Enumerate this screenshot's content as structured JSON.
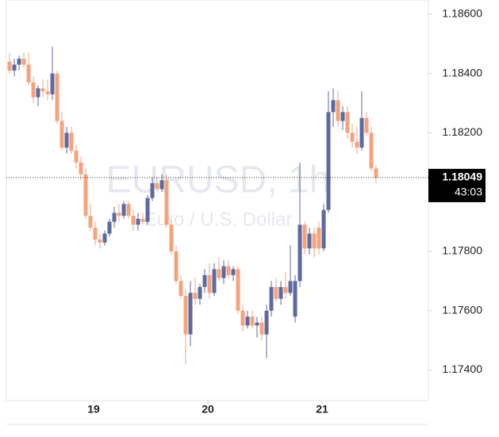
{
  "chart_data": {
    "type": "candlestick",
    "watermark": "EURUSD, 1h",
    "watermark_subtitle": "Euro / U.S. Dollar",
    "x": [
      0,
      1,
      2,
      3,
      4,
      5,
      6,
      7,
      8,
      9,
      10,
      11,
      12,
      13,
      14,
      15,
      16,
      17,
      18,
      19,
      20,
      21,
      22,
      23,
      24,
      25,
      26,
      27,
      28,
      29,
      30,
      31,
      32,
      33,
      34,
      35,
      36,
      37,
      38,
      39,
      40,
      41,
      42,
      43,
      44,
      45,
      46,
      47,
      48,
      49,
      50,
      51,
      52,
      53,
      54,
      55,
      56,
      57,
      58,
      59,
      60,
      61,
      62,
      63,
      64,
      65,
      66,
      67,
      68,
      69,
      70,
      71,
      72,
      73,
      74,
      75,
      76,
      77
    ],
    "open": [
      1.1844,
      1.1841,
      1.1843,
      1.1845,
      1.1843,
      1.1837,
      1.1832,
      1.1835,
      1.1834,
      1.1833,
      1.184,
      1.1824,
      1.1815,
      1.182,
      1.1814,
      1.181,
      1.1806,
      1.1792,
      1.1788,
      1.1784,
      1.1783,
      1.1786,
      1.179,
      1.1793,
      1.1792,
      1.1796,
      1.1792,
      1.1789,
      1.1791,
      1.179,
      1.1798,
      1.1803,
      1.1801,
      1.1804,
      1.1789,
      1.178,
      1.177,
      1.1765,
      1.1752,
      1.1766,
      1.1764,
      1.1768,
      1.1772,
      1.1766,
      1.1774,
      1.1771,
      1.1775,
      1.1772,
      1.1774,
      1.176,
      1.1755,
      1.1758,
      1.1755,
      1.1756,
      1.1752,
      1.176,
      1.1768,
      1.1764,
      1.1768,
      1.1766,
      1.1758,
      1.177,
      1.1789,
      1.1781,
      1.1786,
      1.1788,
      1.1781,
      1.1794,
      1.1827,
      1.1831,
      1.1824,
      1.1827,
      1.182,
      1.1817,
      1.1815,
      1.1825,
      1.182,
      1.1808
    ],
    "high": [
      1.1847,
      1.1845,
      1.1846,
      1.1847,
      1.1847,
      1.1839,
      1.1836,
      1.1838,
      1.1838,
      1.1849,
      1.1841,
      1.1827,
      1.1822,
      1.1822,
      1.1816,
      1.1812,
      1.1808,
      1.1796,
      1.179,
      1.1786,
      1.1787,
      1.1791,
      1.1795,
      1.1796,
      1.1797,
      1.1797,
      1.1794,
      1.1793,
      1.1793,
      1.1799,
      1.1805,
      1.1805,
      1.1806,
      1.1806,
      1.1791,
      1.1782,
      1.1772,
      1.1767,
      1.177,
      1.1771,
      1.1769,
      1.1774,
      1.1776,
      1.1776,
      1.1778,
      1.1777,
      1.1777,
      1.1775,
      1.1775,
      1.1762,
      1.176,
      1.176,
      1.1758,
      1.1758,
      1.1762,
      1.177,
      1.1771,
      1.177,
      1.1773,
      1.1782,
      1.1772,
      1.181,
      1.179,
      1.1788,
      1.1788,
      1.179,
      1.1796,
      1.1834,
      1.1835,
      1.1834,
      1.1829,
      1.1829,
      1.1823,
      1.1822,
      1.1834,
      1.1827,
      1.1822,
      1.1809
    ],
    "low": [
      1.184,
      1.1839,
      1.1841,
      1.1842,
      1.1836,
      1.183,
      1.1829,
      1.1832,
      1.1831,
      1.1831,
      1.1823,
      1.1814,
      1.1813,
      1.1813,
      1.1808,
      1.1804,
      1.1791,
      1.1787,
      1.1782,
      1.1781,
      1.1782,
      1.1785,
      1.1788,
      1.179,
      1.1791,
      1.1791,
      1.1787,
      1.1787,
      1.1789,
      1.1789,
      1.1797,
      1.18,
      1.18,
      1.1788,
      1.1779,
      1.1769,
      1.1764,
      1.1742,
      1.1748,
      1.1762,
      1.1762,
      1.1766,
      1.1764,
      1.1765,
      1.177,
      1.1769,
      1.1771,
      1.177,
      1.1759,
      1.1753,
      1.1754,
      1.1754,
      1.1751,
      1.175,
      1.1744,
      1.1758,
      1.1763,
      1.1762,
      1.1764,
      1.1765,
      1.1756,
      1.1768,
      1.1779,
      1.1779,
      1.1778,
      1.1779,
      1.178,
      1.1793,
      1.1822,
      1.1822,
      1.1821,
      1.1818,
      1.1815,
      1.1813,
      1.1814,
      1.1819,
      1.1807,
      1.1803
    ],
    "close": [
      1.1841,
      1.1843,
      1.1845,
      1.1843,
      1.1837,
      1.1832,
      1.1835,
      1.1834,
      1.1833,
      1.184,
      1.1824,
      1.1815,
      1.182,
      1.1814,
      1.181,
      1.1806,
      1.1792,
      1.1788,
      1.1784,
      1.1783,
      1.1786,
      1.179,
      1.1793,
      1.1792,
      1.1796,
      1.1792,
      1.1789,
      1.1791,
      1.179,
      1.1798,
      1.1803,
      1.1801,
      1.1804,
      1.1789,
      1.178,
      1.177,
      1.1765,
      1.1752,
      1.1766,
      1.1764,
      1.1768,
      1.1772,
      1.1766,
      1.1774,
      1.1771,
      1.1775,
      1.1772,
      1.1774,
      1.176,
      1.1755,
      1.1758,
      1.1755,
      1.1756,
      1.1752,
      1.176,
      1.1768,
      1.1764,
      1.1768,
      1.1766,
      1.177,
      1.177,
      1.1789,
      1.1781,
      1.1786,
      1.1781,
      1.1781,
      1.1794,
      1.1827,
      1.1831,
      1.1824,
      1.1827,
      1.182,
      1.1817,
      1.1815,
      1.1825,
      1.182,
      1.1808,
      1.18049
    ],
    "up_color": "#5d6aa0",
    "down_color": "#f5a37c",
    "xlim": [
      -0.67,
      88
    ],
    "xticks": [
      {
        "value": 17.67,
        "label": "19"
      },
      {
        "value": 41.67,
        "label": "20"
      },
      {
        "value": 65.67,
        "label": "21"
      }
    ],
    "ylim": [
      1.17297,
      1.18648
    ],
    "yticks": [
      {
        "value": 1.186,
        "label": "1.18600"
      },
      {
        "value": 1.184,
        "label": "1.18400"
      },
      {
        "value": 1.182,
        "label": "1.18200"
      },
      {
        "value": 1.178,
        "label": "1.17800"
      },
      {
        "value": 1.176,
        "label": "1.17600"
      },
      {
        "value": 1.174,
        "label": "1.17400"
      }
    ],
    "last_price": {
      "value": 1.18049,
      "label": "1.18049"
    },
    "countdown": "43:03"
  }
}
